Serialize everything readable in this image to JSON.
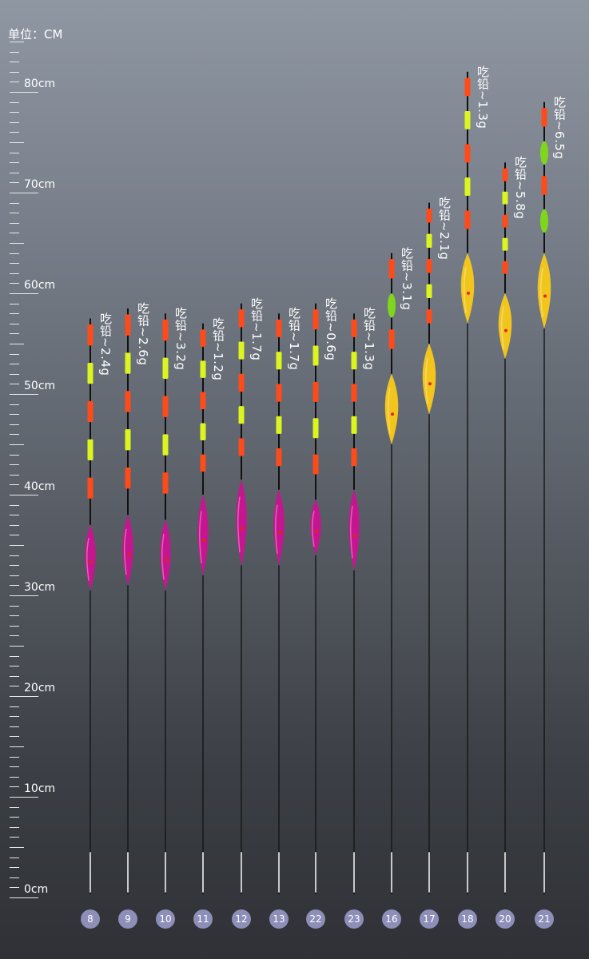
{
  "unit_label": "单位：CM",
  "ruler": {
    "labels": [
      "0cm",
      "10cm",
      "20cm",
      "30cm",
      "40cm",
      "50cm",
      "60cm",
      "70cm",
      "80cm"
    ]
  },
  "colors": {
    "pink_body": "#c4168f",
    "yellow_body": "#f2c51d",
    "tip_red": "#ff4a1a",
    "tip_yellow": "#dcf51e",
    "tip_green": "#7fd61c",
    "stem": "#111111",
    "badge": "#8d8fb9"
  },
  "floats": [
    {
      "id": "8",
      "label": "吃铅~2.4g",
      "body": "pink",
      "top_cm": 57.5,
      "body_top_cm": 37,
      "body_bottom_cm": 30.5,
      "seg_colors": [
        "red",
        "yellow",
        "red",
        "yellow",
        "red"
      ]
    },
    {
      "id": "9",
      "label": "吃铅~2.6g",
      "body": "pink",
      "top_cm": 58.5,
      "body_top_cm": 38,
      "body_bottom_cm": 31,
      "seg_colors": [
        "red",
        "yellow",
        "red",
        "yellow",
        "red"
      ]
    },
    {
      "id": "10",
      "label": "吃铅~3.2g",
      "body": "pink",
      "top_cm": 58,
      "body_top_cm": 37.5,
      "body_bottom_cm": 30.5,
      "seg_colors": [
        "red",
        "yellow",
        "red",
        "yellow",
        "red"
      ]
    },
    {
      "id": "11",
      "label": "吃铅~1.2g",
      "body": "pink",
      "top_cm": 57,
      "body_top_cm": 40,
      "body_bottom_cm": 32,
      "seg_colors": [
        "red",
        "yellow",
        "red",
        "yellow",
        "red"
      ]
    },
    {
      "id": "12",
      "label": "吃铅~1.7g",
      "body": "pink",
      "top_cm": 59,
      "body_top_cm": 41.5,
      "body_bottom_cm": 33,
      "seg_colors": [
        "red",
        "yellow",
        "red",
        "yellow",
        "red"
      ]
    },
    {
      "id": "13",
      "label": "吃铅~1.7g",
      "body": "pink",
      "top_cm": 58,
      "body_top_cm": 40.5,
      "body_bottom_cm": 33,
      "seg_colors": [
        "red",
        "yellow",
        "red",
        "yellow",
        "red"
      ]
    },
    {
      "id": "22",
      "label": "吃铅~0.6g",
      "body": "pink",
      "top_cm": 59,
      "body_top_cm": 39.5,
      "body_bottom_cm": 34,
      "seg_colors": [
        "red",
        "yellow",
        "red",
        "yellow",
        "red"
      ]
    },
    {
      "id": "23",
      "label": "吃铅~1.3g",
      "body": "pink",
      "top_cm": 58,
      "body_top_cm": 40.5,
      "body_bottom_cm": 32.5,
      "seg_colors": [
        "red",
        "yellow",
        "red",
        "yellow",
        "red"
      ]
    },
    {
      "id": "16",
      "label": "吃铅~3.1g",
      "body": "yellow",
      "top_cm": 64,
      "body_top_cm": 52,
      "body_bottom_cm": 45,
      "seg_colors": [
        "red",
        "green",
        "red"
      ]
    },
    {
      "id": "17",
      "label": "吃铅~2.1g",
      "body": "yellow",
      "top_cm": 69,
      "body_top_cm": 55,
      "body_bottom_cm": 48,
      "seg_colors": [
        "red",
        "yellow",
        "red",
        "yellow",
        "red"
      ]
    },
    {
      "id": "18",
      "label": "吃铅~1.3g",
      "body": "yellow",
      "top_cm": 82,
      "body_top_cm": 64,
      "body_bottom_cm": 57,
      "seg_colors": [
        "red",
        "yellow",
        "red",
        "yellow",
        "red"
      ]
    },
    {
      "id": "20",
      "label": "吃铅~5.8g",
      "body": "yellow",
      "top_cm": 73,
      "body_top_cm": 60,
      "body_bottom_cm": 53.5,
      "seg_colors": [
        "red",
        "yellow",
        "red",
        "yellow",
        "red"
      ]
    },
    {
      "id": "21",
      "label": "吃铅~6.5g",
      "body": "yellow",
      "top_cm": 79,
      "body_top_cm": 64,
      "body_bottom_cm": 56.5,
      "seg_colors": [
        "red",
        "green",
        "red",
        "green"
      ]
    }
  ]
}
